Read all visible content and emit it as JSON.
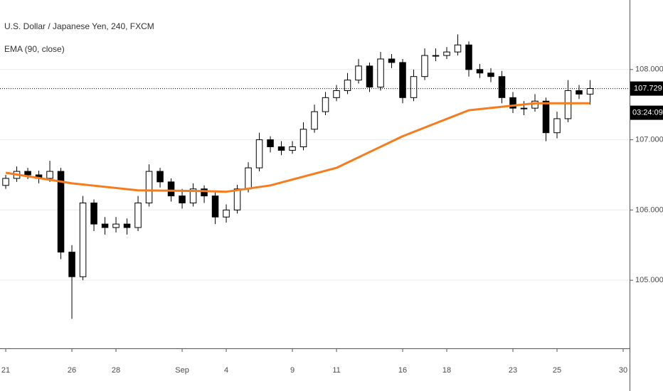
{
  "chart_data": {
    "type": "candlestick",
    "title": "U.S. Dollar / Japanese Yen, 240, FXCM",
    "x": [
      0,
      0.5,
      1,
      1.5,
      2,
      2.5,
      3,
      3.5,
      4,
      4.5,
      5,
      5.5,
      6,
      6.5,
      7,
      7.5,
      8,
      8.5,
      9,
      9.5,
      10,
      10.5,
      11,
      11.5,
      12,
      12.5,
      13,
      13.5,
      14,
      14.5,
      15,
      15.5,
      16,
      16.5,
      17,
      17.5,
      18,
      18.5,
      19,
      19.5,
      20,
      20.5,
      21,
      21.5,
      22,
      22.5,
      23,
      23.5,
      24,
      24.5,
      25,
      25.5,
      26,
      26.5
    ],
    "open": [
      106.35,
      106.45,
      106.55,
      106.5,
      106.45,
      106.55,
      105.4,
      105.05,
      106.1,
      105.8,
      105.75,
      105.8,
      105.75,
      106.1,
      106.55,
      106.4,
      106.2,
      106.1,
      106.3,
      106.2,
      105.9,
      106.0,
      106.3,
      106.6,
      107.0,
      106.9,
      106.85,
      106.9,
      107.15,
      107.4,
      107.6,
      107.7,
      107.85,
      108.05,
      107.75,
      108.15,
      108.1,
      107.6,
      107.9,
      108.2,
      108.2,
      108.25,
      108.35,
      108.0,
      107.95,
      107.9,
      107.6,
      107.45,
      107.45,
      107.55,
      107.1,
      107.3,
      107.7,
      107.65
    ],
    "high": [
      106.5,
      106.62,
      106.6,
      106.56,
      106.7,
      106.6,
      105.5,
      106.2,
      106.15,
      105.9,
      105.9,
      105.88,
      106.2,
      106.65,
      106.6,
      106.45,
      106.3,
      106.38,
      106.35,
      106.25,
      106.08,
      106.36,
      106.68,
      107.1,
      107.05,
      106.98,
      106.98,
      107.25,
      107.5,
      107.68,
      107.78,
      107.95,
      108.15,
      108.1,
      108.25,
      108.22,
      108.15,
      108.0,
      108.3,
      108.3,
      108.32,
      108.5,
      108.4,
      108.08,
      108.02,
      107.98,
      107.68,
      107.55,
      107.65,
      107.6,
      107.4,
      107.85,
      107.78,
      107.85
    ],
    "low": [
      106.3,
      106.4,
      106.44,
      106.38,
      106.4,
      105.3,
      104.45,
      105.0,
      105.7,
      105.65,
      105.68,
      105.65,
      105.7,
      106.05,
      106.32,
      106.12,
      106.02,
      106.05,
      106.1,
      105.8,
      105.82,
      105.95,
      106.25,
      106.55,
      106.82,
      106.78,
      106.8,
      106.85,
      107.1,
      107.35,
      107.55,
      107.65,
      107.8,
      107.68,
      107.7,
      108.02,
      107.52,
      107.55,
      107.85,
      108.12,
      108.15,
      108.2,
      107.9,
      107.88,
      107.82,
      107.52,
      107.38,
      107.35,
      107.4,
      106.98,
      107.02,
      107.25,
      107.58,
      107.5
    ],
    "close": [
      106.45,
      106.55,
      106.5,
      106.45,
      106.55,
      105.4,
      105.05,
      106.1,
      105.8,
      105.75,
      105.8,
      105.75,
      106.1,
      106.55,
      106.4,
      106.2,
      106.1,
      106.3,
      106.2,
      105.9,
      106.0,
      106.3,
      106.6,
      107.0,
      106.9,
      106.85,
      106.9,
      107.15,
      107.4,
      107.6,
      107.7,
      107.85,
      108.05,
      107.75,
      108.15,
      108.1,
      107.6,
      107.9,
      108.2,
      108.2,
      108.25,
      108.35,
      108.0,
      107.95,
      107.9,
      107.6,
      107.45,
      107.45,
      107.55,
      107.1,
      107.3,
      107.7,
      107.65,
      107.73
    ],
    "up_color": "#ffffff",
    "down_color": "#000000",
    "overlay": {
      "name": "EMA (90, close)",
      "color": "#f57c1f",
      "x": [
        0,
        3,
        6,
        9,
        10,
        12,
        15,
        18,
        21,
        24,
        26.5
      ],
      "values": [
        106.53,
        106.38,
        106.28,
        106.27,
        106.26,
        106.35,
        106.6,
        107.05,
        107.42,
        107.52,
        107.52
      ]
    },
    "last_price": 107.729,
    "countdown": "03:24:09",
    "xlim": [
      -0.26,
      28.29
    ],
    "ylim": [
      104.03,
      108.99
    ],
    "xticks": [
      {
        "value": 0,
        "label": "21"
      },
      {
        "value": 3,
        "label": "26"
      },
      {
        "value": 5,
        "label": "28"
      },
      {
        "value": 8,
        "label": "Sep"
      },
      {
        "value": 10,
        "label": "4"
      },
      {
        "value": 13,
        "label": "9"
      },
      {
        "value": 15,
        "label": "11"
      },
      {
        "value": 18,
        "label": "16"
      },
      {
        "value": 20,
        "label": "18"
      },
      {
        "value": 23,
        "label": "23"
      },
      {
        "value": 25,
        "label": "25"
      },
      {
        "value": 28,
        "label": "30"
      }
    ],
    "yticks": [
      {
        "value": 105,
        "label": "105.000"
      },
      {
        "value": 106,
        "label": "106.000"
      },
      {
        "value": 107,
        "label": "107.000"
      },
      {
        "value": 108,
        "label": "108.000"
      }
    ],
    "grid": true
  }
}
